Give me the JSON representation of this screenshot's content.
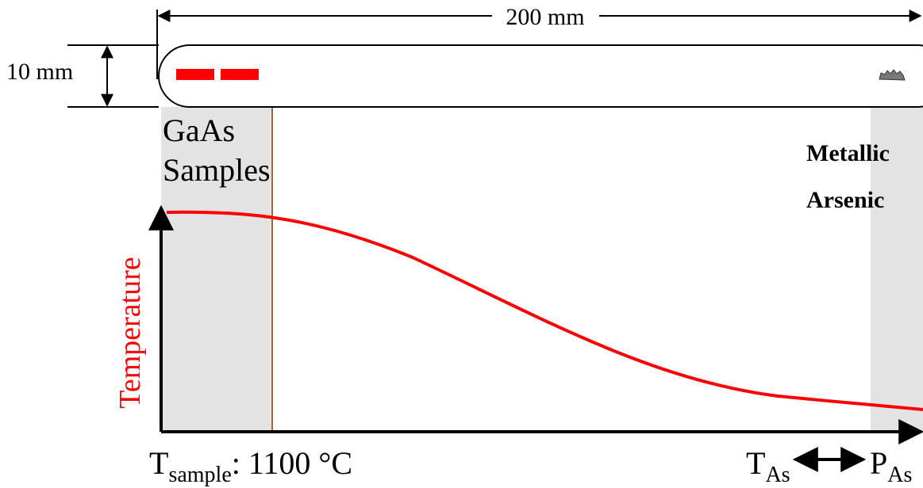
{
  "dimensions": {
    "length": "200 mm",
    "diameter": "10 mm"
  },
  "labels": {
    "samples": [
      "GaAs",
      "Samples"
    ],
    "arsenic": [
      "Metallic",
      "Arsenic"
    ]
  },
  "axis": {
    "y_label": "Temperature"
  },
  "annotations": {
    "sample_temp": {
      "symbol": "T",
      "subscript": "sample",
      "text": ": 1100 °C"
    },
    "arsenic": {
      "t_symbol": "T",
      "t_subscript": "As",
      "p_symbol": "P",
      "p_subscript": "As"
    }
  }
}
